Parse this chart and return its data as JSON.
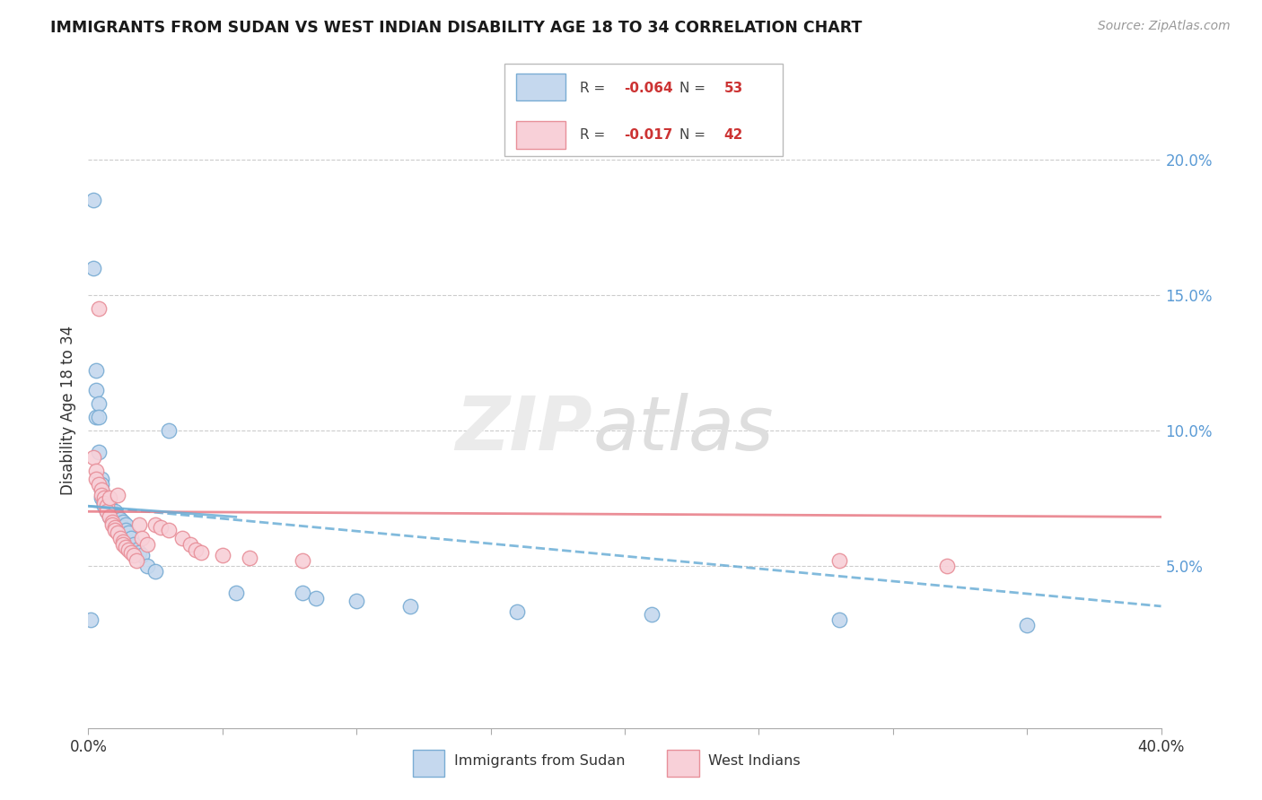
{
  "title": "IMMIGRANTS FROM SUDAN VS WEST INDIAN DISABILITY AGE 18 TO 34 CORRELATION CHART",
  "source": "Source: ZipAtlas.com",
  "ylabel": "Disability Age 18 to 34",
  "legend_label1": "Immigrants from Sudan",
  "legend_label2": "West Indians",
  "R1": "-0.064",
  "N1": "53",
  "R2": "-0.017",
  "N2": "42",
  "color_blue_fill": "#c5d8ee",
  "color_blue_edge": "#7aadd4",
  "color_pink_fill": "#f8d0d8",
  "color_pink_edge": "#e8909a",
  "color_trendline_blue": "#6baed6",
  "color_trendline_pink": "#e87a85",
  "xlim": [
    0.0,
    0.4
  ],
  "ylim": [
    -0.01,
    0.225
  ],
  "right_ytick_vals": [
    0.05,
    0.1,
    0.15,
    0.2
  ],
  "sudan_x": [
    0.001,
    0.002,
    0.002,
    0.003,
    0.003,
    0.003,
    0.004,
    0.004,
    0.004,
    0.005,
    0.005,
    0.005,
    0.005,
    0.006,
    0.006,
    0.006,
    0.007,
    0.007,
    0.007,
    0.008,
    0.008,
    0.008,
    0.009,
    0.009,
    0.01,
    0.01,
    0.01,
    0.011,
    0.011,
    0.012,
    0.012,
    0.013,
    0.013,
    0.014,
    0.014,
    0.015,
    0.016,
    0.017,
    0.018,
    0.019,
    0.02,
    0.022,
    0.025,
    0.03,
    0.055,
    0.08,
    0.085,
    0.1,
    0.12,
    0.16,
    0.21,
    0.28,
    0.35
  ],
  "sudan_y": [
    0.03,
    0.185,
    0.16,
    0.122,
    0.115,
    0.105,
    0.11,
    0.105,
    0.092,
    0.082,
    0.08,
    0.078,
    0.075,
    0.074,
    0.073,
    0.072,
    0.073,
    0.072,
    0.07,
    0.072,
    0.07,
    0.068,
    0.07,
    0.068,
    0.07,
    0.068,
    0.067,
    0.068,
    0.066,
    0.067,
    0.065,
    0.066,
    0.064,
    0.065,
    0.063,
    0.062,
    0.06,
    0.058,
    0.056,
    0.055,
    0.054,
    0.05,
    0.048,
    0.1,
    0.04,
    0.04,
    0.038,
    0.037,
    0.035,
    0.033,
    0.032,
    0.03,
    0.028
  ],
  "westindian_x": [
    0.002,
    0.003,
    0.003,
    0.004,
    0.004,
    0.005,
    0.005,
    0.006,
    0.006,
    0.007,
    0.007,
    0.008,
    0.008,
    0.009,
    0.009,
    0.01,
    0.01,
    0.011,
    0.011,
    0.012,
    0.013,
    0.013,
    0.014,
    0.015,
    0.016,
    0.017,
    0.018,
    0.019,
    0.02,
    0.022,
    0.025,
    0.027,
    0.03,
    0.035,
    0.038,
    0.04,
    0.042,
    0.05,
    0.06,
    0.08,
    0.28,
    0.32
  ],
  "westindian_y": [
    0.09,
    0.085,
    0.082,
    0.08,
    0.145,
    0.078,
    0.076,
    0.075,
    0.073,
    0.072,
    0.07,
    0.075,
    0.068,
    0.066,
    0.065,
    0.064,
    0.063,
    0.076,
    0.062,
    0.06,
    0.059,
    0.058,
    0.057,
    0.056,
    0.055,
    0.054,
    0.052,
    0.065,
    0.06,
    0.058,
    0.065,
    0.064,
    0.063,
    0.06,
    0.058,
    0.056,
    0.055,
    0.054,
    0.053,
    0.052,
    0.052,
    0.05
  ]
}
